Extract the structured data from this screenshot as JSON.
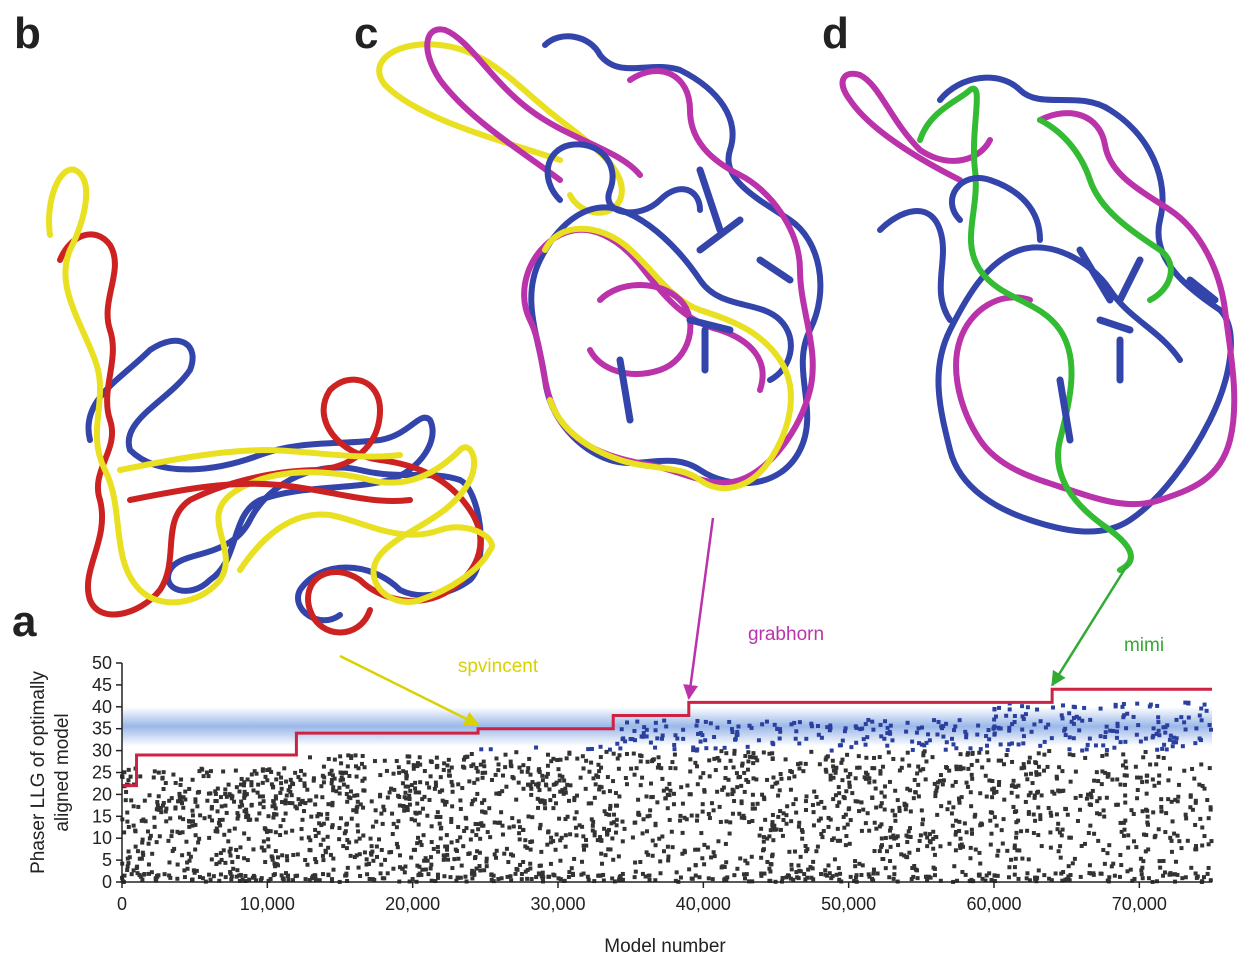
{
  "panels": {
    "a": {
      "letter": "a"
    },
    "b": {
      "letter": "b",
      "structure_colors": [
        "#e8e020",
        "#cc2222",
        "#3344aa"
      ]
    },
    "c": {
      "letter": "c",
      "structure_colors": [
        "#e8e020",
        "#bb33aa",
        "#3344aa"
      ]
    },
    "d": {
      "letter": "d",
      "structure_colors": [
        "#33bb33",
        "#bb33aa",
        "#3344aa"
      ]
    }
  },
  "chart_data": {
    "type": "scatter",
    "xlabel": "Model number",
    "ylabel": "Phaser LLG of optimally aligned model",
    "xlim": [
      0,
      75000
    ],
    "ylim": [
      0,
      50
    ],
    "xticks": [
      "0",
      "10,000",
      "20,000",
      "30,000",
      "40,000",
      "50,000",
      "60,000",
      "70,000"
    ],
    "xtick_values": [
      0,
      10000,
      20000,
      30000,
      40000,
      50000,
      60000,
      70000
    ],
    "yticks": [
      "0",
      "5",
      "10",
      "15",
      "20",
      "25",
      "30",
      "35",
      "40",
      "45",
      "50"
    ],
    "ytick_values": [
      0,
      5,
      10,
      15,
      20,
      25,
      30,
      35,
      40,
      45,
      50
    ],
    "highlight_band": {
      "from": 31,
      "to": 40,
      "color": "#8fb0e6"
    },
    "series": [
      {
        "type": "step",
        "color": "#cc2244",
        "x": [
          0,
          1000,
          12000,
          24500,
          33800,
          39000,
          64000,
          75000
        ],
        "y": [
          22,
          29,
          34,
          35,
          38,
          41,
          44,
          44
        ]
      }
    ],
    "point_color_low": "#333333",
    "point_color_high": "#2a3f9e",
    "point_density_profile": [
      {
        "x_from": 0,
        "x_to": 12000,
        "y_max": 26
      },
      {
        "x_from": 12000,
        "x_to": 24000,
        "y_max": 29
      },
      {
        "x_from": 24000,
        "x_to": 34000,
        "y_max": 31
      },
      {
        "x_from": 34000,
        "x_to": 60000,
        "y_max": 37
      },
      {
        "x_from": 60000,
        "x_to": 75000,
        "y_max": 41
      }
    ],
    "annotations": [
      {
        "label": "spvincent",
        "color": "#d8d200",
        "x": 24500,
        "y": 35
      },
      {
        "label": "grabhorn",
        "color": "#bb33aa",
        "x": 39000,
        "y": 41
      },
      {
        "label": "mimi",
        "color": "#33aa33",
        "x": 64000,
        "y": 44
      }
    ]
  }
}
